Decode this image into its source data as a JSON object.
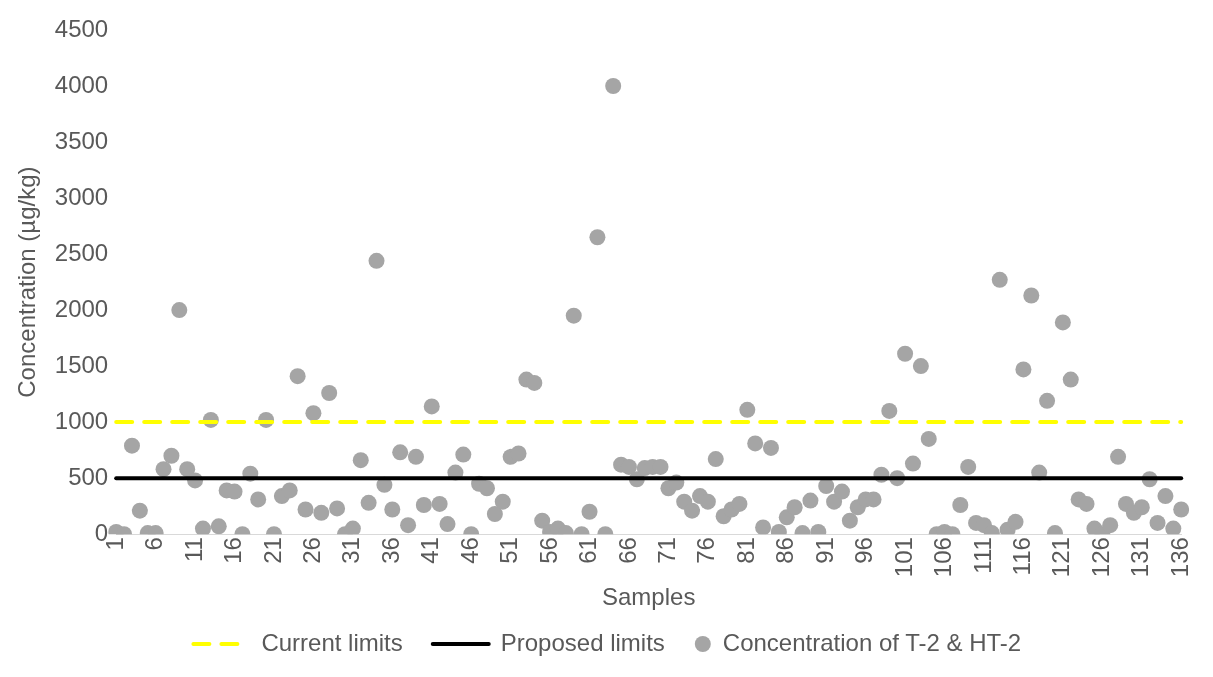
{
  "chart_data": {
    "type": "scatter",
    "xlabel": "Samples",
    "ylabel": "Concentration (µg/kg)",
    "categories": [
      "1",
      null,
      null,
      null,
      null,
      "6",
      null,
      null,
      null,
      null,
      "11",
      null,
      null,
      null,
      null,
      "16",
      null,
      null,
      null,
      null,
      "21",
      null,
      null,
      null,
      null,
      "26",
      null,
      null,
      null,
      null,
      "31",
      null,
      null,
      null,
      null,
      "36",
      null,
      null,
      null,
      null,
      "41",
      null,
      null,
      null,
      null,
      "46",
      null,
      null,
      null,
      null,
      "51",
      null,
      null,
      null,
      null,
      "56",
      null,
      null,
      null,
      null,
      "61",
      null,
      null,
      null,
      null,
      "66",
      null,
      null,
      null,
      null,
      "71",
      null,
      null,
      null,
      null,
      "76",
      null,
      null,
      null,
      null,
      "81",
      null,
      null,
      null,
      null,
      "86",
      null,
      null,
      null,
      null,
      "91",
      null,
      null,
      null,
      null,
      "96",
      null,
      null,
      null,
      null,
      "101",
      null,
      null,
      null,
      null,
      "106",
      null,
      null,
      null,
      null,
      "111",
      null,
      null,
      null,
      null,
      "116",
      null,
      null,
      null,
      null,
      "121",
      null,
      null,
      null,
      null,
      "126",
      null,
      null,
      null,
      null,
      "131",
      null,
      null,
      null,
      null,
      "136"
    ],
    "series": [
      {
        "name": "Concentration of T-2 & HT-2",
        "color": "#a5a5a5",
        "values": [
          20,
          0,
          790,
          210,
          10,
          10,
          580,
          700,
          2000,
          580,
          480,
          50,
          1020,
          70,
          390,
          380,
          0,
          540,
          310,
          1020,
          0,
          340,
          390,
          1410,
          220,
          1080,
          190,
          1260,
          230,
          0,
          50,
          660,
          280,
          2440,
          440,
          220,
          730,
          80,
          690,
          260,
          1140,
          270,
          90,
          550,
          710,
          0,
          450,
          410,
          180,
          290,
          690,
          720,
          1380,
          1350,
          120,
          20,
          50,
          10,
          1950,
          0,
          200,
          2650,
          0,
          4000,
          620,
          600,
          490,
          590,
          600,
          600,
          410,
          460,
          290,
          210,
          340,
          290,
          670,
          160,
          220,
          270,
          1110,
          810,
          60,
          770,
          20,
          150,
          240,
          10,
          300,
          20,
          430,
          290,
          380,
          120,
          240,
          310,
          310,
          530,
          1100,
          500,
          1610,
          630,
          1500,
          850,
          0,
          20,
          0,
          260,
          600,
          100,
          80,
          10,
          2270,
          40,
          110,
          1470,
          2130,
          550,
          1190,
          10,
          1890,
          1380,
          310,
          270,
          50,
          0,
          80,
          690,
          270,
          190,
          240,
          490,
          100,
          340,
          50,
          220
        ]
      }
    ],
    "ref_lines": [
      {
        "axis": "y",
        "value": 1000,
        "label": "Current limits",
        "color": "#ffff00",
        "line_style": "dashed"
      },
      {
        "axis": "y",
        "value": 500,
        "label": "Proposed limits",
        "color": "#000000",
        "line_style": "solid"
      }
    ],
    "ylim": [
      0,
      4500
    ],
    "yticks": [
      0,
      500,
      1000,
      1500,
      2000,
      2500,
      3000,
      3500,
      4000,
      4500
    ],
    "marker": "circle",
    "legend": "bottom",
    "grid": false
  }
}
